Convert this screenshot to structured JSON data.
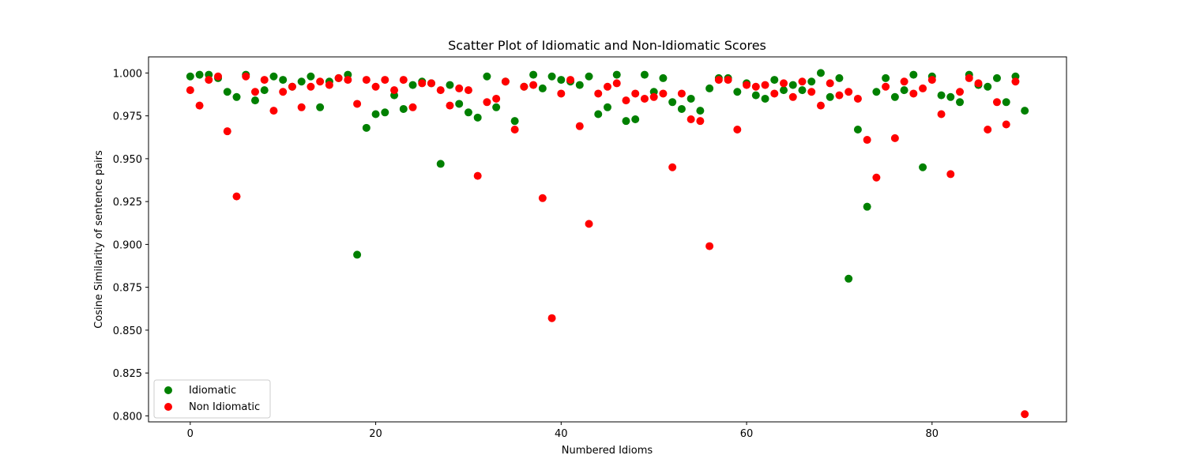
{
  "chart_data": {
    "type": "scatter",
    "title": "Scatter Plot of Idiomatic and Non-Idiomatic Scores",
    "xlabel": "Numbered Idioms",
    "ylabel": "Cosine Similarity of sentence pairs",
    "xlim": [
      -4.5,
      94.5
    ],
    "ylim": [
      0.7965,
      1.0094
    ],
    "xticks": [
      0,
      20,
      40,
      60,
      80
    ],
    "yticks": [
      0.8,
      0.825,
      0.85,
      0.875,
      0.9,
      0.925,
      0.95,
      0.975,
      1.0
    ],
    "ytick_labels": [
      "0.800",
      "0.825",
      "0.850",
      "0.875",
      "0.900",
      "0.925",
      "0.950",
      "0.975",
      "1.000"
    ],
    "grid": false,
    "legend_position": "lower-left",
    "series": [
      {
        "name": "Idiomatic",
        "color": "#008000",
        "x": [
          0,
          1,
          2,
          3,
          4,
          5,
          6,
          7,
          8,
          9,
          10,
          11,
          12,
          13,
          14,
          15,
          16,
          17,
          18,
          19,
          20,
          21,
          22,
          23,
          24,
          25,
          26,
          27,
          28,
          29,
          30,
          31,
          32,
          33,
          34,
          35,
          36,
          37,
          38,
          39,
          40,
          41,
          42,
          43,
          44,
          45,
          46,
          47,
          48,
          49,
          50,
          51,
          52,
          53,
          54,
          55,
          56,
          57,
          58,
          59,
          60,
          61,
          62,
          63,
          64,
          65,
          66,
          67,
          68,
          69,
          70,
          71,
          72,
          73,
          74,
          75,
          76,
          77,
          78,
          79,
          80,
          81,
          82,
          83,
          84,
          85,
          86,
          87,
          88,
          89,
          90
        ],
        "y": [
          0.998,
          0.999,
          0.999,
          0.997,
          0.989,
          0.986,
          0.999,
          0.984,
          0.99,
          0.998,
          0.996,
          0.992,
          0.995,
          0.998,
          0.98,
          0.995,
          0.997,
          0.999,
          0.894,
          0.968,
          0.976,
          0.977,
          0.987,
          0.979,
          0.993,
          0.995,
          0.994,
          0.947,
          0.993,
          0.982,
          0.977,
          0.974,
          0.998,
          0.98,
          0.995,
          0.972,
          0.992,
          0.999,
          0.991,
          0.998,
          0.996,
          0.995,
          0.993,
          0.998,
          0.976,
          0.98,
          0.999,
          0.972,
          0.973,
          0.999,
          0.989,
          0.997,
          0.983,
          0.979,
          0.985,
          0.978,
          0.991,
          0.997,
          0.997,
          0.989,
          0.994,
          0.987,
          0.985,
          0.996,
          0.99,
          0.993,
          0.99,
          0.995,
          1.0,
          0.986,
          0.997,
          0.88,
          0.967,
          0.922,
          0.989,
          0.997,
          0.986,
          0.99,
          0.999,
          0.945,
          0.998,
          0.987,
          0.986,
          0.983,
          0.999,
          0.993,
          0.992,
          0.997,
          0.983,
          0.998,
          0.978
        ]
      },
      {
        "name": "Non Idiomatic",
        "color": "#ff0000",
        "x": [
          0,
          1,
          2,
          3,
          4,
          5,
          6,
          7,
          8,
          9,
          10,
          11,
          12,
          13,
          14,
          15,
          16,
          17,
          18,
          19,
          20,
          21,
          22,
          23,
          24,
          25,
          26,
          27,
          28,
          29,
          30,
          31,
          32,
          33,
          34,
          35,
          36,
          37,
          38,
          39,
          40,
          41,
          42,
          43,
          44,
          45,
          46,
          47,
          48,
          49,
          50,
          51,
          52,
          53,
          54,
          55,
          56,
          57,
          58,
          59,
          60,
          61,
          62,
          63,
          64,
          65,
          66,
          67,
          68,
          69,
          70,
          71,
          72,
          73,
          74,
          75,
          76,
          77,
          78,
          79,
          80,
          81,
          82,
          83,
          84,
          85,
          86,
          87,
          88,
          89,
          90
        ],
        "y": [
          0.99,
          0.981,
          0.996,
          0.998,
          0.966,
          0.928,
          0.998,
          0.989,
          0.996,
          0.978,
          0.989,
          0.992,
          0.98,
          0.992,
          0.995,
          0.993,
          0.997,
          0.996,
          0.982,
          0.996,
          0.992,
          0.996,
          0.99,
          0.996,
          0.98,
          0.994,
          0.994,
          0.99,
          0.981,
          0.991,
          0.99,
          0.94,
          0.983,
          0.985,
          0.995,
          0.967,
          0.992,
          0.993,
          0.927,
          0.857,
          0.988,
          0.996,
          0.969,
          0.912,
          0.988,
          0.992,
          0.994,
          0.984,
          0.988,
          0.985,
          0.986,
          0.988,
          0.945,
          0.988,
          0.973,
          0.972,
          0.899,
          0.996,
          0.996,
          0.967,
          0.993,
          0.992,
          0.993,
          0.988,
          0.994,
          0.986,
          0.995,
          0.989,
          0.981,
          0.994,
          0.987,
          0.989,
          0.985,
          0.961,
          0.939,
          0.992,
          0.962,
          0.995,
          0.988,
          0.991,
          0.996,
          0.976,
          0.941,
          0.989,
          0.997,
          0.994,
          0.967,
          0.983,
          0.97,
          0.995,
          0.801
        ]
      }
    ]
  }
}
